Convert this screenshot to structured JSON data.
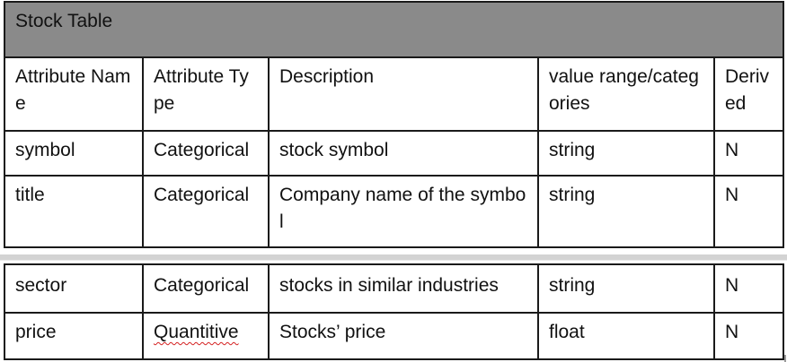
{
  "table": {
    "title": "Stock Table",
    "headers": [
      "Attribute Name",
      "Attribute Type",
      "Description",
      "value range/categories",
      "Derived"
    ],
    "rows_top": [
      [
        "symbol",
        "Categorical",
        "stock symbol",
        "string",
        "N"
      ],
      [
        "title",
        "Categorical",
        "Company name of the symbol",
        "string",
        "N"
      ]
    ],
    "rows_bottom": [
      [
        "sector",
        "Categorical",
        "stocks in similar industries",
        "string",
        "N"
      ],
      [
        "price",
        "Quantitive",
        "Stocks’ price",
        "float",
        "N"
      ]
    ]
  }
}
